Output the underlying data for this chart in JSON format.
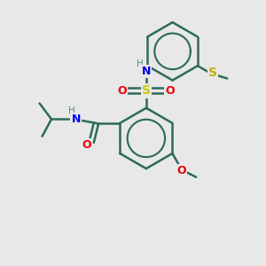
{
  "background_color": "#e8e8e8",
  "bond_color": "#2d6b5a",
  "bond_width": 1.8,
  "atom_colors": {
    "N": "#0000ee",
    "O": "#ee0000",
    "S_sulfonyl": "#cccc00",
    "S_thio": "#ccaa00",
    "H": "#5a8a7a",
    "C": "#2d6b5a"
  },
  "figsize": [
    3.0,
    3.0
  ],
  "dpi": 100,
  "xlim": [
    0,
    10
  ],
  "ylim": [
    0,
    10
  ]
}
